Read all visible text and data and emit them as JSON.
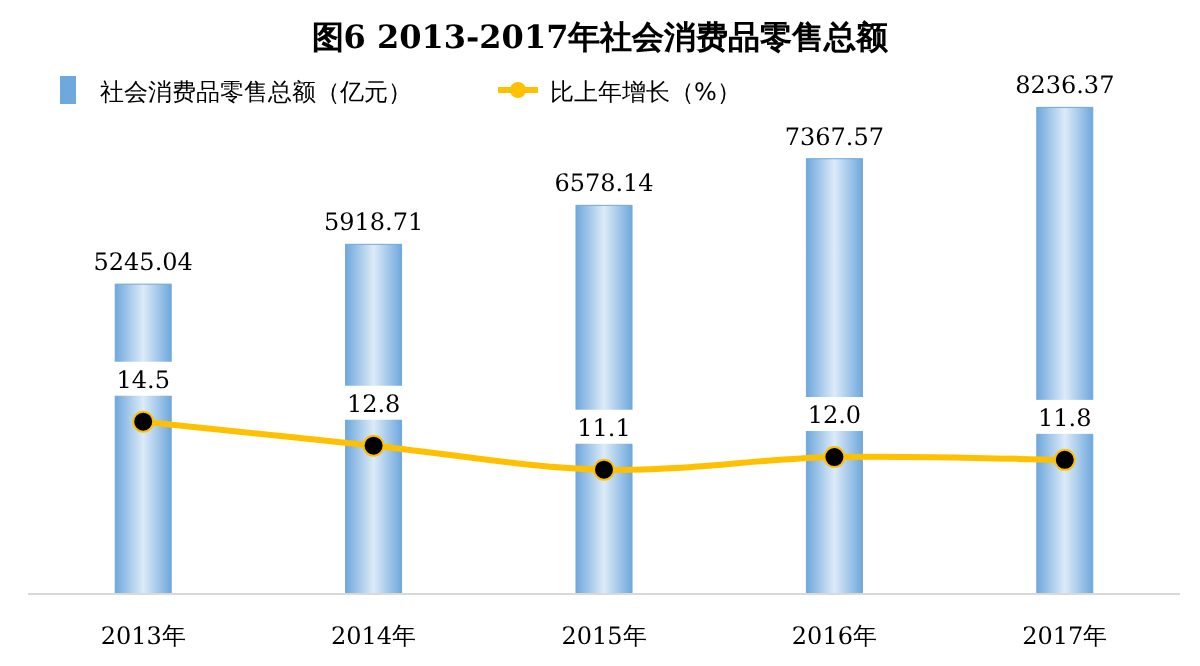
{
  "chart_data": {
    "type": "bar",
    "title": "图6 2013-2017年社会消费品零售总额",
    "categories": [
      "2013年",
      "2014年",
      "2015年",
      "2016年",
      "2017年"
    ],
    "series": [
      {
        "name": "社会消费品零售总额（亿元）",
        "color": "#6fa8dc",
        "values": [
          5245.04,
          5918.71,
          6578.14,
          7367.57,
          8236.37
        ],
        "value_labels": [
          "5245.04",
          "5918.71",
          "6578.14",
          "7367.57",
          "8236.37"
        ]
      },
      {
        "name": "比上年增长（%）",
        "type": "line",
        "axis": "y2",
        "color": "#ffc000",
        "marker": "circle",
        "values": [
          14.5,
          12.8,
          11.1,
          12.0,
          11.8
        ],
        "value_labels": [
          "14.5",
          "12.8",
          "11.1",
          "12.0",
          "11.8"
        ]
      }
    ],
    "ylim": [
      0,
      8700
    ],
    "y2lim": [
      2.3,
      38.7
    ],
    "legend": "top left",
    "tick_labels": "x"
  }
}
